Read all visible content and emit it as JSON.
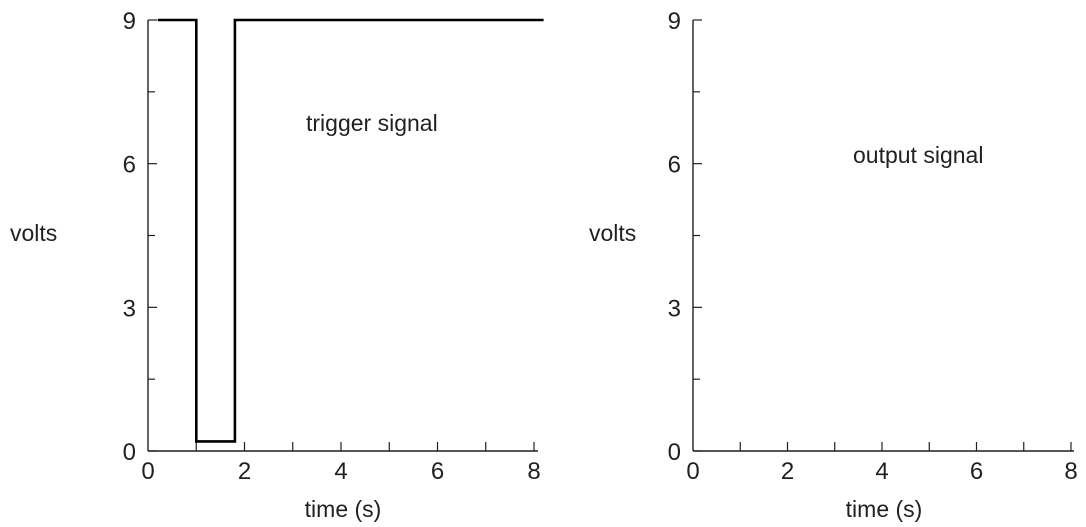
{
  "chart_data": [
    {
      "type": "line",
      "title": "",
      "annotation": "trigger signal",
      "xlabel": "time (s)",
      "ylabel": "volts",
      "xlim": [
        0,
        8
      ],
      "ylim": [
        0,
        9
      ],
      "x_ticks": [
        0,
        2,
        4,
        6,
        8
      ],
      "y_ticks": [
        0,
        3,
        6,
        9
      ],
      "x_tick_labels": [
        "0",
        "2",
        "4",
        "6",
        "8"
      ],
      "y_tick_labels": [
        "0",
        "3",
        "6",
        "9"
      ],
      "grid": false,
      "series": [
        {
          "x": [
            0.2,
            1.0,
            1.0,
            1.8,
            1.8,
            8.2
          ],
          "y": [
            9,
            9,
            0.2,
            0.2,
            9,
            9
          ]
        }
      ]
    },
    {
      "type": "line",
      "title": "",
      "annotation": "output signal",
      "xlabel": "time (s)",
      "ylabel": "volts",
      "xlim": [
        0,
        8
      ],
      "ylim": [
        0,
        9
      ],
      "x_ticks": [
        0,
        2,
        4,
        6,
        8
      ],
      "y_ticks": [
        0,
        3,
        6,
        9
      ],
      "x_tick_labels": [
        "0",
        "2",
        "4",
        "6",
        "8"
      ],
      "y_tick_labels": [
        "0",
        "3",
        "6",
        "9"
      ],
      "grid": false,
      "series": []
    }
  ]
}
